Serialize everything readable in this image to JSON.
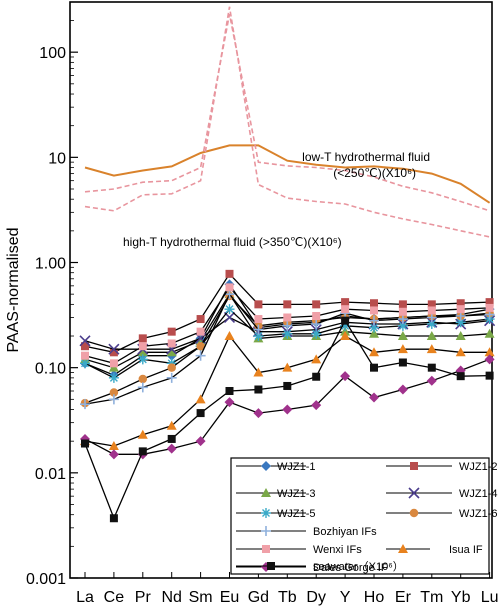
{
  "chart_data": {
    "type": "line",
    "ylabel": "PAAS-normalised",
    "xlabel": "",
    "yscale": "log",
    "ylim": [
      0.001,
      300
    ],
    "ytick_values": [
      0.001,
      0.01,
      0.1,
      1,
      10,
      100
    ],
    "ytick_labels": [
      "0.001",
      "0.01",
      "0.10",
      "1.00",
      "10",
      "100"
    ],
    "categories": [
      "La",
      "Ce",
      "Pr",
      "Nd",
      "Sm",
      "Eu",
      "Gd",
      "Tb",
      "Dy",
      "Y",
      "Ho",
      "Er",
      "Tm",
      "Yb",
      "Lu"
    ],
    "annotations": [
      {
        "line1": "low-T hydrothermal fluid",
        "line2": "(<250℃)(X10⁶)"
      },
      {
        "line1": "high-T hydrothermal fluid (>350℃)(X10⁶)"
      }
    ],
    "series": [
      {
        "name": "WJZ1-1",
        "color": "#3a78c0",
        "marker": "diamond",
        "values": [
          0.11,
          0.085,
          0.13,
          0.13,
          0.19,
          0.62,
          0.24,
          0.26,
          0.27,
          0.31,
          0.29,
          0.3,
          0.31,
          0.32,
          0.36
        ]
      },
      {
        "name": "WJZ1-2",
        "color": "#b84d4d",
        "marker": "square",
        "values": [
          0.16,
          0.14,
          0.19,
          0.22,
          0.29,
          0.78,
          0.4,
          0.4,
          0.4,
          0.42,
          0.41,
          0.4,
          0.4,
          0.41,
          0.42
        ]
      },
      {
        "name": "WJZ1-3",
        "color": "#7aa848",
        "marker": "triangle",
        "values": [
          0.12,
          0.1,
          0.14,
          0.14,
          0.18,
          0.5,
          0.19,
          0.2,
          0.2,
          0.22,
          0.21,
          0.2,
          0.2,
          0.2,
          0.21
        ]
      },
      {
        "name": "WJZ1-4",
        "color": "#4b3d8c",
        "marker": "x",
        "values": [
          0.18,
          0.15,
          0.15,
          0.15,
          0.19,
          0.3,
          0.22,
          0.22,
          0.23,
          0.27,
          0.26,
          0.26,
          0.27,
          0.26,
          0.28
        ]
      },
      {
        "name": "WJZ1-5",
        "color": "#3aaac8",
        "marker": "asterisk",
        "values": [
          0.11,
          0.08,
          0.12,
          0.11,
          0.16,
          0.36,
          0.2,
          0.21,
          0.21,
          0.25,
          0.24,
          0.25,
          0.26,
          0.27,
          0.29
        ]
      },
      {
        "name": "WJZ1-6",
        "color": "#d98840",
        "marker": "circle",
        "values": [
          0.046,
          0.058,
          0.078,
          0.1,
          0.16,
          0.48,
          0.25,
          0.27,
          0.28,
          0.3,
          0.29,
          0.3,
          0.31,
          0.31,
          0.33
        ]
      },
      {
        "name": "Bozhiyan IFs",
        "color": "#8fb0dc",
        "marker": "plus",
        "values": [
          0.045,
          0.05,
          0.065,
          0.08,
          0.13,
          0.5,
          0.23,
          0.25,
          0.26,
          0.33,
          0.28,
          0.29,
          0.3,
          0.31,
          0.32
        ]
      },
      {
        "name": "Wenxi IFs",
        "color": "#f0a0a8",
        "marker": "square",
        "values": [
          0.13,
          0.11,
          0.16,
          0.17,
          0.22,
          0.58,
          0.29,
          0.3,
          0.31,
          0.36,
          0.35,
          0.34,
          0.35,
          0.36,
          0.37
        ]
      },
      {
        "name": "Isua IF",
        "color": "#e8821e",
        "marker": "triangle",
        "values": [
          0.02,
          0.018,
          0.023,
          0.028,
          0.05,
          0.2,
          0.09,
          0.1,
          0.12,
          0.2,
          0.14,
          0.15,
          0.15,
          0.14,
          0.14
        ]
      },
      {
        "name": "Dales Gorge IF",
        "color": "#a0328c",
        "marker": "diamond",
        "values": [
          0.021,
          0.015,
          0.015,
          0.017,
          0.02,
          0.047,
          0.037,
          0.04,
          0.044,
          0.083,
          0.052,
          0.062,
          0.075,
          0.094,
          0.12
        ]
      },
      {
        "name": "seawater（X10⁶）",
        "color": "#111111",
        "marker": "square",
        "values": [
          0.019,
          0.0037,
          0.016,
          0.021,
          0.037,
          0.06,
          0.062,
          0.067,
          0.082,
          0.28,
          0.1,
          0.112,
          0.1,
          0.083,
          0.084
        ]
      }
    ],
    "reference_curves": [
      {
        "id": "low-T",
        "color": "#d9822b",
        "style": "solid",
        "values": [
          8,
          6.7,
          7.5,
          8.2,
          11,
          13,
          13,
          9.3,
          8.5,
          8,
          8.2,
          7.8,
          7,
          5.6,
          3.7
        ]
      },
      {
        "id": "high-T-upper",
        "color": "#e8959e",
        "style": "dashed",
        "values": [
          4.7,
          5,
          5.8,
          6,
          8,
          230,
          9,
          8.3,
          8,
          7.5,
          6.5,
          5.3,
          4.6,
          3.8,
          3.1
        ]
      },
      {
        "id": "high-T-lower",
        "color": "#e8959e",
        "style": "dashed",
        "values": [
          3.4,
          3.1,
          4.4,
          4.5,
          6,
          270,
          5.5,
          4.1,
          3.8,
          3.6,
          3,
          2.6,
          2.3,
          2,
          1.75
        ]
      }
    ]
  }
}
